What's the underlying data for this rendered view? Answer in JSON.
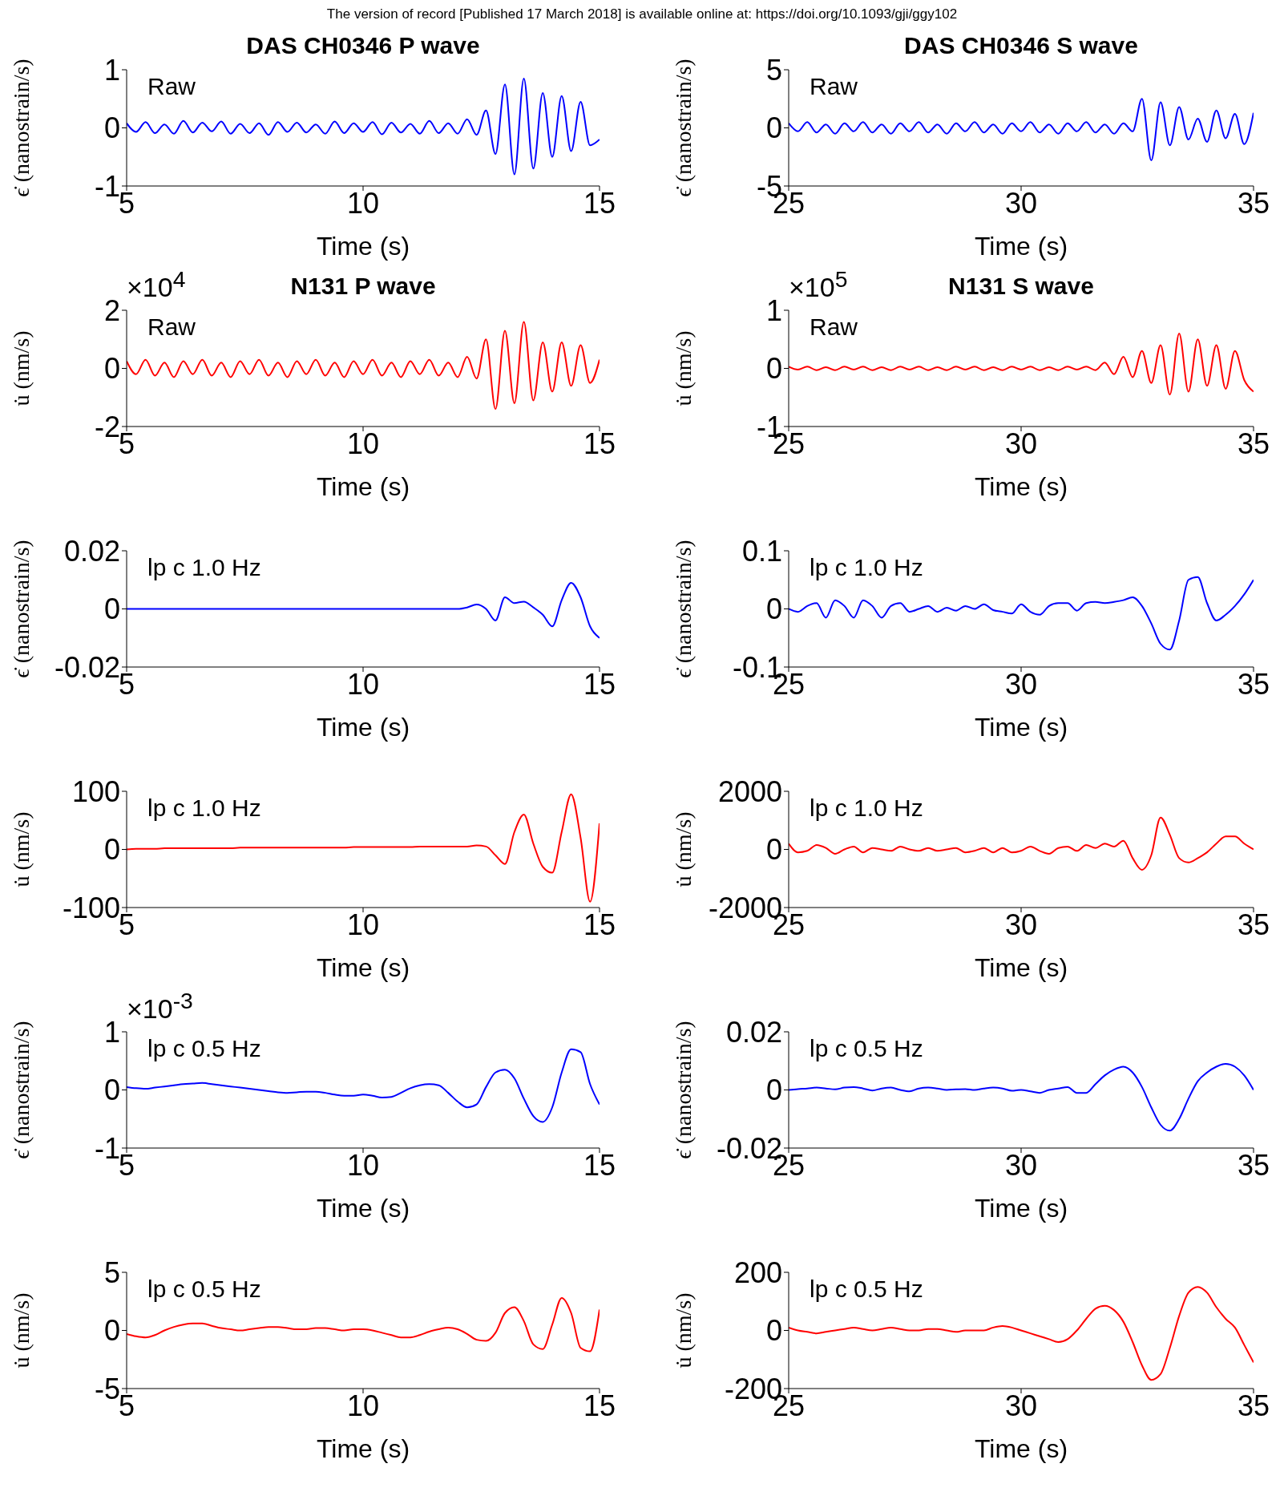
{
  "chart_data": [
    {
      "type": "line",
      "title": "DAS CH0346 P wave",
      "xlabel": "Time (s)",
      "ylabel": "ϵ̇ (nanostrain/s)",
      "annotations": [
        "Raw",
        "The version of record [Published 17 March 2018] is available online at: https://doi.org/10.1093/gji/ggy102"
      ],
      "color": "#0000ff",
      "xlim": [
        5,
        15
      ],
      "xticks": [
        5,
        10,
        15
      ],
      "ylim": [
        -1,
        1
      ],
      "yticks": [
        -1,
        0,
        1
      ],
      "x": [
        5,
        5.2,
        5.4,
        5.6,
        5.8,
        6,
        6.2,
        6.4,
        6.6,
        6.8,
        7,
        7.2,
        7.4,
        7.6,
        7.8,
        8,
        8.2,
        8.4,
        8.6,
        8.8,
        9,
        9.2,
        9.4,
        9.6,
        9.8,
        10,
        10.2,
        10.4,
        10.6,
        10.8,
        11,
        11.2,
        11.4,
        11.6,
        11.8,
        12,
        12.2,
        12.4,
        12.6,
        12.8,
        13,
        13.2,
        13.4,
        13.6,
        13.8,
        14,
        14.2,
        14.4,
        14.6,
        14.8,
        15
      ],
      "values": [
        0.08,
        -0.07,
        0.1,
        -0.09,
        0.06,
        -0.1,
        0.12,
        -0.08,
        0.09,
        -0.06,
        0.11,
        -0.1,
        0.07,
        -0.09,
        0.08,
        -0.12,
        0.1,
        -0.07,
        0.09,
        -0.08,
        0.06,
        -0.1,
        0.11,
        -0.09,
        0.08,
        -0.07,
        0.1,
        -0.11,
        0.09,
        -0.08,
        0.07,
        -0.1,
        0.12,
        -0.09,
        0.08,
        -0.1,
        0.15,
        -0.12,
        0.3,
        -0.45,
        0.75,
        -0.8,
        0.85,
        -0.7,
        0.6,
        -0.5,
        0.55,
        -0.4,
        0.45,
        -0.3,
        -0.2
      ]
    },
    {
      "type": "line",
      "title": "DAS CH0346 S wave",
      "xlabel": "Time (s)",
      "ylabel": "ϵ̇ (nanostrain/s)",
      "annotations": [
        "Raw"
      ],
      "color": "#0000ff",
      "xlim": [
        25,
        35
      ],
      "xticks": [
        25,
        30,
        35
      ],
      "ylim": [
        -5,
        5
      ],
      "yticks": [
        -5,
        0,
        5
      ],
      "x": [
        25,
        25.2,
        25.4,
        25.6,
        25.8,
        26,
        26.2,
        26.4,
        26.6,
        26.8,
        27,
        27.2,
        27.4,
        27.6,
        27.8,
        28,
        28.2,
        28.4,
        28.6,
        28.8,
        29,
        29.2,
        29.4,
        29.6,
        29.8,
        30,
        30.2,
        30.4,
        30.6,
        30.8,
        31,
        31.2,
        31.4,
        31.6,
        31.8,
        32,
        32.2,
        32.4,
        32.6,
        32.8,
        33,
        33.2,
        33.4,
        33.6,
        33.8,
        34,
        34.2,
        34.4,
        34.6,
        34.8,
        35
      ],
      "values": [
        0.4,
        -0.3,
        0.5,
        -0.4,
        0.3,
        -0.5,
        0.4,
        -0.3,
        0.5,
        -0.4,
        0.3,
        -0.5,
        0.4,
        -0.3,
        0.5,
        -0.4,
        0.3,
        -0.5,
        0.4,
        -0.3,
        0.5,
        -0.4,
        0.3,
        -0.5,
        0.4,
        -0.3,
        0.5,
        -0.4,
        0.3,
        -0.5,
        0.4,
        -0.3,
        0.5,
        -0.4,
        0.3,
        -0.5,
        0.4,
        -0.3,
        2.5,
        -2.8,
        2.2,
        -1.5,
        1.8,
        -1,
        0.8,
        -1.2,
        1.5,
        -0.9,
        1.2,
        -1.4,
        1.3
      ]
    },
    {
      "type": "line",
      "title": "N131 P wave",
      "xlabel": "Time (s)",
      "ylabel": "u̇ (nm/s)",
      "annotations": [
        "Raw",
        "×10$^{4}$"
      ],
      "color": "#ff0000",
      "xlim": [
        5,
        15
      ],
      "xticks": [
        5,
        10,
        15
      ],
      "ylim": [
        -2,
        2
      ],
      "yticks": [
        -2,
        0,
        2
      ],
      "x": [
        5,
        5.2,
        5.4,
        5.6,
        5.8,
        6,
        6.2,
        6.4,
        6.6,
        6.8,
        7,
        7.2,
        7.4,
        7.6,
        7.8,
        8,
        8.2,
        8.4,
        8.6,
        8.8,
        9,
        9.2,
        9.4,
        9.6,
        9.8,
        10,
        10.2,
        10.4,
        10.6,
        10.8,
        11,
        11.2,
        11.4,
        11.6,
        11.8,
        12,
        12.2,
        12.4,
        12.6,
        12.8,
        13,
        13.2,
        13.4,
        13.6,
        13.8,
        14,
        14.2,
        14.4,
        14.6,
        14.8,
        15
      ],
      "values": [
        0.25,
        -0.2,
        0.3,
        -0.25,
        0.2,
        -0.3,
        0.25,
        -0.2,
        0.3,
        -0.25,
        0.2,
        -0.3,
        0.25,
        -0.2,
        0.3,
        -0.25,
        0.2,
        -0.3,
        0.25,
        -0.2,
        0.3,
        -0.25,
        0.2,
        -0.3,
        0.25,
        -0.2,
        0.3,
        -0.25,
        0.2,
        -0.3,
        0.25,
        -0.2,
        0.3,
        -0.25,
        0.2,
        -0.3,
        0.4,
        -0.35,
        1,
        -1.4,
        1.3,
        -1.2,
        1.6,
        -1.1,
        0.9,
        -0.8,
        0.9,
        -0.6,
        0.8,
        -0.5,
        0.3
      ]
    },
    {
      "type": "line",
      "title": "N131 S wave",
      "xlabel": "Time (s)",
      "ylabel": "u̇ (nm/s)",
      "annotations": [
        "Raw",
        "×10$^{5}$"
      ],
      "color": "#ff0000",
      "xlim": [
        25,
        35
      ],
      "xticks": [
        25,
        30,
        35
      ],
      "ylim": [
        -1,
        1
      ],
      "yticks": [
        -1,
        0,
        1
      ],
      "x": [
        25,
        25.2,
        25.4,
        25.6,
        25.8,
        26,
        26.2,
        26.4,
        26.6,
        26.8,
        27,
        27.2,
        27.4,
        27.6,
        27.8,
        28,
        28.2,
        28.4,
        28.6,
        28.8,
        29,
        29.2,
        29.4,
        29.6,
        29.8,
        30,
        30.2,
        30.4,
        30.6,
        30.8,
        31,
        31.2,
        31.4,
        31.6,
        31.8,
        32,
        32.2,
        32.4,
        32.6,
        32.8,
        33,
        33.2,
        33.4,
        33.6,
        33.8,
        34,
        34.2,
        34.4,
        34.6,
        34.8,
        35
      ],
      "values": [
        0.03,
        -0.02,
        0.03,
        -0.03,
        0.02,
        -0.03,
        0.03,
        -0.02,
        0.03,
        -0.03,
        0.02,
        -0.03,
        0.03,
        -0.02,
        0.03,
        -0.03,
        0.02,
        -0.03,
        0.03,
        -0.02,
        0.03,
        -0.03,
        0.02,
        -0.03,
        0.03,
        -0.02,
        0.03,
        -0.03,
        0.02,
        -0.03,
        0.03,
        -0.02,
        0.03,
        -0.03,
        0.1,
        -0.1,
        0.2,
        -0.15,
        0.3,
        -0.25,
        0.4,
        -0.45,
        0.6,
        -0.4,
        0.5,
        -0.3,
        0.4,
        -0.35,
        0.3,
        -0.2,
        -0.4
      ]
    },
    {
      "type": "line",
      "xlabel": "Time (s)",
      "ylabel": "ϵ̇ (nanostrain/s)",
      "annotations": [
        "lp c 1.0 Hz"
      ],
      "color": "#0000ff",
      "xlim": [
        5,
        15
      ],
      "xticks": [
        5,
        10,
        15
      ],
      "ylim": [
        -0.02,
        0.02
      ],
      "yticks": [
        -0.02,
        0,
        0.02
      ],
      "x": [
        5,
        5.2,
        5.4,
        5.6,
        5.8,
        6,
        6.2,
        6.4,
        6.6,
        6.8,
        7,
        7.2,
        7.4,
        7.6,
        7.8,
        8,
        8.2,
        8.4,
        8.6,
        8.8,
        9,
        9.2,
        9.4,
        9.6,
        9.8,
        10,
        10.2,
        10.4,
        10.6,
        10.8,
        11,
        11.2,
        11.4,
        11.6,
        11.8,
        12,
        12.2,
        12.4,
        12.6,
        12.8,
        13,
        13.2,
        13.4,
        13.6,
        13.8,
        14,
        14.2,
        14.4,
        14.6,
        14.8,
        15
      ],
      "values": [
        0,
        0,
        0,
        0,
        0,
        0,
        0,
        0,
        0,
        0,
        0,
        0,
        0,
        0,
        0,
        0,
        0,
        0,
        0,
        0,
        0,
        0,
        0,
        0,
        0,
        0,
        0,
        0,
        0,
        0,
        0,
        0,
        0,
        0,
        0,
        0,
        0.0005,
        0.0015,
        0,
        -0.004,
        0.004,
        0.002,
        0.0025,
        0.0005,
        -0.002,
        -0.006,
        0.003,
        0.009,
        0.004,
        -0.006,
        -0.01
      ]
    },
    {
      "type": "line",
      "xlabel": "Time (s)",
      "ylabel": "ϵ̇ (nanostrain/s)",
      "annotations": [
        "lp c 1.0 Hz"
      ],
      "color": "#0000ff",
      "xlim": [
        25,
        35
      ],
      "xticks": [
        25,
        30,
        35
      ],
      "ylim": [
        -0.1,
        0.1
      ],
      "yticks": [
        -0.1,
        0,
        0.1
      ],
      "x": [
        25,
        25.2,
        25.4,
        25.6,
        25.8,
        26,
        26.2,
        26.4,
        26.6,
        26.8,
        27,
        27.2,
        27.4,
        27.6,
        27.8,
        28,
        28.2,
        28.4,
        28.6,
        28.8,
        29,
        29.2,
        29.4,
        29.6,
        29.8,
        30,
        30.2,
        30.4,
        30.6,
        30.8,
        31,
        31.2,
        31.4,
        31.6,
        31.8,
        32,
        32.2,
        32.4,
        32.6,
        32.8,
        33,
        33.2,
        33.4,
        33.6,
        33.8,
        34,
        34.2,
        34.4,
        34.6,
        34.8,
        35
      ],
      "values": [
        0,
        -0.005,
        0.005,
        0.01,
        -0.015,
        0.015,
        0.005,
        -0.015,
        0.015,
        0.005,
        -0.015,
        0.005,
        0.01,
        -0.005,
        0,
        0.005,
        -0.005,
        0.002,
        -0.003,
        0.005,
        0,
        0.008,
        -0.002,
        -0.005,
        -0.008,
        0.008,
        -0.005,
        -0.01,
        0.005,
        0.01,
        0.01,
        -0.003,
        0.01,
        0.012,
        0.01,
        0.012,
        0.015,
        0.02,
        0.005,
        -0.025,
        -0.06,
        -0.07,
        -0.02,
        0.05,
        0.055,
        0.01,
        -0.02,
        -0.01,
        0.005,
        0.025,
        0.05
      ]
    },
    {
      "type": "line",
      "xlabel": "Time (s)",
      "ylabel": "u̇ (nm/s)",
      "annotations": [
        "lp c 1.0 Hz"
      ],
      "color": "#ff0000",
      "xlim": [
        5,
        15
      ],
      "xticks": [
        5,
        10,
        15
      ],
      "ylim": [
        -100,
        100
      ],
      "yticks": [
        -100,
        0,
        100
      ],
      "x": [
        5,
        5.2,
        5.4,
        5.6,
        5.8,
        6,
        6.2,
        6.4,
        6.6,
        6.8,
        7,
        7.2,
        7.4,
        7.6,
        7.8,
        8,
        8.2,
        8.4,
        8.6,
        8.8,
        9,
        9.2,
        9.4,
        9.6,
        9.8,
        10,
        10.2,
        10.4,
        10.6,
        10.8,
        11,
        11.2,
        11.4,
        11.6,
        11.8,
        12,
        12.2,
        12.4,
        12.6,
        12.8,
        13,
        13.2,
        13.4,
        13.6,
        13.8,
        14,
        14.2,
        14.4,
        14.6,
        14.8,
        15
      ],
      "values": [
        0,
        1,
        1,
        1,
        2,
        2,
        2,
        2,
        2,
        2,
        2,
        2,
        3,
        3,
        3,
        3,
        3,
        3,
        3,
        3,
        3,
        3,
        3,
        3,
        4,
        4,
        4,
        4,
        4,
        4,
        4,
        5,
        5,
        5,
        5,
        5,
        5,
        7,
        5,
        -10,
        -25,
        30,
        60,
        10,
        -30,
        -40,
        30,
        95,
        20,
        -90,
        45
      ]
    },
    {
      "type": "line",
      "xlabel": "Time (s)",
      "ylabel": "u̇ (nm/s)",
      "annotations": [
        "lp c 1.0 Hz"
      ],
      "color": "#ff0000",
      "xlim": [
        25,
        35
      ],
      "xticks": [
        25,
        30,
        35
      ],
      "ylim": [
        -2000,
        2000
      ],
      "yticks": [
        -2000,
        0,
        2000
      ],
      "x": [
        25,
        25.2,
        25.4,
        25.6,
        25.8,
        26,
        26.2,
        26.4,
        26.6,
        26.8,
        27,
        27.2,
        27.4,
        27.6,
        27.8,
        28,
        28.2,
        28.4,
        28.6,
        28.8,
        29,
        29.2,
        29.4,
        29.6,
        29.8,
        30,
        30.2,
        30.4,
        30.6,
        30.8,
        31,
        31.2,
        31.4,
        31.6,
        31.8,
        32,
        32.2,
        32.4,
        32.6,
        32.8,
        33,
        33.2,
        33.4,
        33.6,
        33.8,
        34,
        34.2,
        34.4,
        34.6,
        34.8,
        35
      ],
      "values": [
        200,
        -100,
        -50,
        150,
        50,
        -150,
        0,
        100,
        -100,
        50,
        0,
        -50,
        100,
        0,
        -50,
        50,
        -50,
        0,
        50,
        -100,
        -50,
        50,
        -100,
        50,
        -100,
        -50,
        100,
        -50,
        -150,
        50,
        100,
        -50,
        150,
        50,
        200,
        100,
        300,
        -300,
        -700,
        -200,
        1100,
        500,
        -300,
        -450,
        -300,
        -100,
        200,
        450,
        450,
        200,
        0
      ]
    },
    {
      "type": "line",
      "xlabel": "Time (s)",
      "ylabel": "ϵ̇ (nanostrain/s)",
      "annotations": [
        "lp c 0.5 Hz",
        "×10$^{-3}$"
      ],
      "color": "#0000ff",
      "xlim": [
        5,
        15
      ],
      "xticks": [
        5,
        10,
        15
      ],
      "ylim": [
        -1,
        1
      ],
      "yticks": [
        -1,
        0,
        1
      ],
      "x": [
        5,
        5.2,
        5.4,
        5.6,
        5.8,
        6,
        6.2,
        6.4,
        6.6,
        6.8,
        7,
        7.2,
        7.4,
        7.6,
        7.8,
        8,
        8.2,
        8.4,
        8.6,
        8.8,
        9,
        9.2,
        9.4,
        9.6,
        9.8,
        10,
        10.2,
        10.4,
        10.6,
        10.8,
        11,
        11.2,
        11.4,
        11.6,
        11.8,
        12,
        12.2,
        12.4,
        12.6,
        12.8,
        13,
        13.2,
        13.4,
        13.6,
        13.8,
        14,
        14.2,
        14.4,
        14.6,
        14.8,
        15
      ],
      "values": [
        0.05,
        0.03,
        0.02,
        0.04,
        0.06,
        0.08,
        0.1,
        0.11,
        0.12,
        0.1,
        0.08,
        0.06,
        0.04,
        0.02,
        0,
        -0.02,
        -0.04,
        -0.05,
        -0.04,
        -0.03,
        -0.03,
        -0.05,
        -0.08,
        -0.1,
        -0.1,
        -0.08,
        -0.1,
        -0.13,
        -0.12,
        -0.05,
        0.03,
        0.08,
        0.1,
        0.08,
        -0.05,
        -0.2,
        -0.3,
        -0.25,
        0.05,
        0.3,
        0.35,
        0.2,
        -0.15,
        -0.45,
        -0.55,
        -0.3,
        0.3,
        0.7,
        0.65,
        0.1,
        -0.25
      ]
    },
    {
      "type": "line",
      "xlabel": "Time (s)",
      "ylabel": "ϵ̇ (nanostrain/s)",
      "annotations": [
        "lp c 0.5 Hz"
      ],
      "color": "#0000ff",
      "xlim": [
        25,
        35
      ],
      "xticks": [
        25,
        30,
        35
      ],
      "ylim": [
        -0.02,
        0.02
      ],
      "yticks": [
        -0.02,
        0,
        0.02
      ],
      "x": [
        25,
        25.2,
        25.4,
        25.6,
        25.8,
        26,
        26.2,
        26.4,
        26.6,
        26.8,
        27,
        27.2,
        27.4,
        27.6,
        27.8,
        28,
        28.2,
        28.4,
        28.6,
        28.8,
        29,
        29.2,
        29.4,
        29.6,
        29.8,
        30,
        30.2,
        30.4,
        30.6,
        30.8,
        31,
        31.2,
        31.4,
        31.6,
        31.8,
        32,
        32.2,
        32.4,
        32.6,
        32.8,
        33,
        33.2,
        33.4,
        33.6,
        33.8,
        34,
        34.2,
        34.4,
        34.6,
        34.8,
        35
      ],
      "values": [
        0,
        0.0003,
        0.0005,
        0.0008,
        0.0005,
        0.0002,
        0.0008,
        0.001,
        0.0005,
        -0.0002,
        0.0005,
        0.0008,
        0,
        -0.0005,
        0.0005,
        0.0008,
        0.0005,
        0,
        0.0002,
        0.0003,
        0,
        0.0005,
        0.0008,
        0.0005,
        -0.0003,
        0,
        -0.0005,
        -0.001,
        0,
        0.0005,
        0.001,
        -0.001,
        -0.001,
        0.002,
        0.005,
        0.007,
        0.008,
        0.006,
        0.001,
        -0.006,
        -0.012,
        -0.014,
        -0.01,
        -0.003,
        0.003,
        0.006,
        0.008,
        0.009,
        0.008,
        0.005,
        0
      ]
    },
    {
      "type": "line",
      "xlabel": "Time (s)",
      "ylabel": "u̇ (nm/s)",
      "annotations": [
        "lp c 0.5 Hz"
      ],
      "color": "#ff0000",
      "xlim": [
        5,
        15
      ],
      "xticks": [
        5,
        10,
        15
      ],
      "ylim": [
        -5,
        5
      ],
      "yticks": [
        -5,
        0,
        5
      ],
      "x": [
        5,
        5.2,
        5.4,
        5.6,
        5.8,
        6,
        6.2,
        6.4,
        6.6,
        6.8,
        7,
        7.2,
        7.4,
        7.6,
        7.8,
        8,
        8.2,
        8.4,
        8.6,
        8.8,
        9,
        9.2,
        9.4,
        9.6,
        9.8,
        10,
        10.2,
        10.4,
        10.6,
        10.8,
        11,
        11.2,
        11.4,
        11.6,
        11.8,
        12,
        12.2,
        12.4,
        12.6,
        12.8,
        13,
        13.2,
        13.4,
        13.6,
        13.8,
        14,
        14.2,
        14.4,
        14.6,
        14.8,
        15
      ],
      "values": [
        -0.3,
        -0.5,
        -0.6,
        -0.4,
        0,
        0.3,
        0.5,
        0.6,
        0.6,
        0.4,
        0.2,
        0.1,
        0,
        0.1,
        0.2,
        0.3,
        0.3,
        0.2,
        0.1,
        0.1,
        0.2,
        0.2,
        0.1,
        0,
        0.1,
        0.1,
        0,
        -0.2,
        -0.4,
        -0.6,
        -0.6,
        -0.4,
        -0.1,
        0.1,
        0.25,
        0.1,
        -0.3,
        -0.8,
        -0.9,
        -0.2,
        1.5,
        2,
        0.8,
        -1.2,
        -1.6,
        0.5,
        2.8,
        1.5,
        -1.5,
        -1.8,
        1.8
      ]
    },
    {
      "type": "line",
      "xlabel": "Time (s)",
      "ylabel": "u̇ (nm/s)",
      "annotations": [
        "lp c 0.5 Hz"
      ],
      "color": "#ff0000",
      "xlim": [
        25,
        35
      ],
      "xticks": [
        25,
        30,
        35
      ],
      "ylim": [
        -200,
        200
      ],
      "yticks": [
        -200,
        0,
        200
      ],
      "x": [
        25,
        25.2,
        25.4,
        25.6,
        25.8,
        26,
        26.2,
        26.4,
        26.6,
        26.8,
        27,
        27.2,
        27.4,
        27.6,
        27.8,
        28,
        28.2,
        28.4,
        28.6,
        28.8,
        29,
        29.2,
        29.4,
        29.6,
        29.8,
        30,
        30.2,
        30.4,
        30.6,
        30.8,
        31,
        31.2,
        31.4,
        31.6,
        31.8,
        32,
        32.2,
        32.4,
        32.6,
        32.8,
        33,
        33.2,
        33.4,
        33.6,
        33.8,
        34,
        34.2,
        34.4,
        34.6,
        34.8,
        35
      ],
      "values": [
        10,
        0,
        -5,
        -10,
        -5,
        0,
        5,
        10,
        5,
        0,
        5,
        10,
        5,
        0,
        0,
        5,
        5,
        0,
        -5,
        0,
        0,
        0,
        10,
        15,
        10,
        0,
        -10,
        -20,
        -30,
        -40,
        -30,
        0,
        40,
        75,
        85,
        70,
        30,
        -40,
        -120,
        -170,
        -150,
        -60,
        50,
        130,
        150,
        130,
        80,
        40,
        10,
        -50,
        -110
      ]
    }
  ]
}
